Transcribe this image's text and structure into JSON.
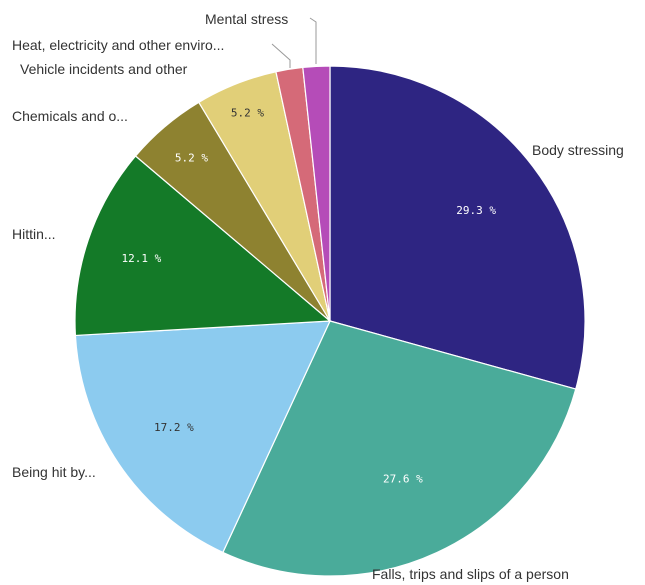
{
  "chart_data": {
    "type": "pie",
    "title": "",
    "slices": [
      {
        "label": "Body stressing",
        "value": 29.3,
        "value_label": "29.3 %",
        "color": "#2e2582",
        "value_text_color": "#ffffff"
      },
      {
        "label": "Falls, trips and slips of a person",
        "value": 27.6,
        "value_label": "27.6 %",
        "color": "#4aab9a",
        "value_text_color": "#ffffff"
      },
      {
        "label": "Being hit by...",
        "value": 17.2,
        "value_label": "17.2 %",
        "color": "#8ccbef",
        "value_text_color": "#333333"
      },
      {
        "label": "Hittin...",
        "value": 12.1,
        "value_label": "12.1 %",
        "color": "#147a28",
        "value_text_color": "#ffffff"
      },
      {
        "label": "Chemicals and o...",
        "value": 5.2,
        "value_label": "5.2 %",
        "color": "#8e8230",
        "value_text_color": "#ffffff"
      },
      {
        "label": "Vehicle incidents and other",
        "value": 5.2,
        "value_label": "5.2 %",
        "color": "#e1cf78",
        "value_text_color": "#333333"
      },
      {
        "label": "Heat, electricity and other enviro...",
        "value": 1.7,
        "value_label": "",
        "color": "#d56a78",
        "value_text_color": "#ffffff"
      },
      {
        "label": "Mental stress",
        "value": 1.7,
        "value_label": "",
        "color": "#b54cb8",
        "value_text_color": "#ffffff"
      }
    ],
    "start_angle_deg": 0,
    "direction": "clockwise",
    "legend": "none (labels outside slices)"
  }
}
